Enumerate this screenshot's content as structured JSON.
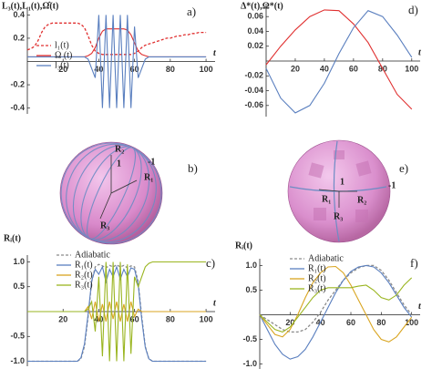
{
  "chart_data": [
    {
      "type": "line",
      "y_label": "L₃(t),L₁(t),Ω̂(t)",
      "panel_label": "a)",
      "x_label": "t",
      "xlim": [
        0,
        102
      ],
      "ylim": [
        -0.45,
        0.45
      ],
      "xticks": [
        20,
        40,
        60,
        80,
        100
      ],
      "yticks": [
        -0.4,
        -0.2,
        0.2,
        0.4
      ],
      "x": [
        0,
        2,
        4,
        6,
        8,
        10,
        12,
        14,
        16,
        18,
        20,
        22,
        24,
        26,
        28,
        30,
        32,
        34,
        36,
        38,
        40,
        42,
        44,
        46,
        48,
        50,
        52,
        54,
        56,
        58,
        60,
        62,
        64,
        66,
        68,
        70,
        72,
        74,
        76,
        78,
        80,
        82,
        84,
        86,
        88,
        90,
        92,
        94,
        96,
        98,
        100
      ],
      "series": [
        {
          "name": "l₁(t)",
          "color": "#e03030",
          "dash": true,
          "values": [
            0.1,
            0.11,
            0.13,
            0.18,
            0.25,
            0.3,
            0.32,
            0.33,
            0.33,
            0.33,
            0.33,
            0.33,
            0.33,
            0.33,
            0.33,
            0.32,
            0.29,
            0.22,
            0.14,
            0.09,
            0.07,
            0.06,
            0.06,
            0.06,
            0.06,
            0.06,
            0.06,
            0.06,
            0.06,
            0.06,
            0.07,
            0.09,
            0.12,
            0.14,
            0.15,
            0.16,
            0.17,
            0.18,
            0.19,
            0.2,
            0.2,
            0.21,
            0.22,
            0.22,
            0.23,
            0.23,
            0.24,
            0.24,
            0.25,
            0.25,
            0.25
          ]
        },
        {
          "name": "Ω (t)",
          "color": "#e03030",
          "dash": false,
          "values": [
            0.04,
            0.04,
            0.04,
            0.04,
            0.04,
            0.04,
            0.04,
            0.04,
            0.04,
            0.04,
            0.04,
            0.04,
            0.04,
            0.04,
            0.04,
            0.04,
            0.04,
            0.05,
            0.07,
            0.12,
            0.2,
            0.26,
            0.28,
            0.28,
            0.28,
            0.28,
            0.28,
            0.28,
            0.27,
            0.23,
            0.16,
            0.09,
            0.06,
            0.05,
            0.04,
            0.04,
            0.04,
            0.04,
            0.04,
            0.04,
            0.04,
            0.04,
            0.04,
            0.04,
            0.04,
            0.04,
            0.04,
            0.04,
            0.04,
            0.04,
            0.04
          ]
        },
        {
          "name": "l₃(t)",
          "color": "#5a7fbf",
          "dash": false,
          "values": [
            0.04,
            0.04,
            0.04,
            0.04,
            0.04,
            0.04,
            0.04,
            0.04,
            0.04,
            0.04,
            0.04,
            0.04,
            0.04,
            0.04,
            0.04,
            0.04,
            0.04,
            0.02,
            -0.06,
            -0.14,
            0.4,
            -0.4,
            0.4,
            -0.4,
            0.4,
            -0.4,
            0.4,
            -0.4,
            0.4,
            -0.4,
            0.3,
            -0.14,
            -0.06,
            0.02,
            0.04,
            0.04,
            0.04,
            0.04,
            0.04,
            0.04,
            0.04,
            0.04,
            0.04,
            0.04,
            0.04,
            0.04,
            0.04,
            0.04,
            0.04,
            0.04,
            0.04
          ]
        }
      ]
    },
    {
      "type": "line",
      "y_label": "Δ*(t),Ω*(t)",
      "panel_label": "d)",
      "x_label": "t",
      "xlim": [
        0,
        102
      ],
      "ylim": [
        -0.075,
        0.075
      ],
      "xticks": [
        20,
        40,
        60,
        80,
        100
      ],
      "yticks": [
        -0.06,
        -0.04,
        -0.02,
        0.02,
        0.04,
        0.06
      ],
      "x": [
        0,
        10,
        20,
        30,
        40,
        50,
        60,
        70,
        80,
        90,
        100
      ],
      "series": [
        {
          "color": "#e03030",
          "dash": false,
          "values": [
            -0.005,
            0.02,
            0.042,
            0.06,
            0.069,
            0.068,
            0.05,
            0.025,
            -0.01,
            -0.045,
            -0.065
          ]
        },
        {
          "color": "#5a7fbf",
          "dash": false,
          "values": [
            -0.01,
            -0.05,
            -0.07,
            -0.06,
            -0.03,
            0.01,
            0.045,
            0.068,
            0.06,
            0.035,
            0.005
          ]
        }
      ]
    },
    {
      "type": "line",
      "y_label": "Rᵢ(t)",
      "panel_label": "c)",
      "x_label": "t",
      "xlim": [
        0,
        102
      ],
      "ylim": [
        -1.1,
        1.1
      ],
      "xticks": [
        20,
        40,
        60,
        80,
        100
      ],
      "yticks": [
        {
          "value": -1,
          "label": "-1.0"
        },
        -0.5,
        0.5,
        {
          "value": 1,
          "label": "1.0"
        }
      ],
      "x": [
        0,
        2,
        4,
        6,
        8,
        10,
        12,
        14,
        16,
        18,
        20,
        22,
        24,
        26,
        28,
        30,
        32,
        34,
        36,
        38,
        40,
        42,
        44,
        46,
        48,
        50,
        52,
        54,
        56,
        58,
        60,
        62,
        64,
        66,
        68,
        70,
        72,
        74,
        76,
        78,
        80,
        82,
        84,
        86,
        88,
        90,
        92,
        94,
        96,
        98,
        100
      ],
      "series": [
        {
          "name": "Adiabatic",
          "color": "#8a8a8a",
          "dash": true,
          "values": [
            -1,
            -1,
            -1,
            -1,
            -1,
            -1,
            -1,
            -1,
            -1,
            -1,
            -1,
            -1,
            -1,
            -1,
            -1,
            -0.95,
            -0.7,
            -0.1,
            0.6,
            0.9,
            0.95,
            0.92,
            0.88,
            0.93,
            0.9,
            0.94,
            0.9,
            0.93,
            0.88,
            0.92,
            0.9,
            0.6,
            -0.1,
            -0.7,
            -0.95,
            -1,
            -1,
            -1,
            -1,
            -1,
            -1,
            -1,
            -1,
            -1,
            -1,
            -1,
            -1,
            -1,
            -1,
            -1,
            -1
          ]
        },
        {
          "name": "R₁(t)",
          "color": "#5a7fbf",
          "dash": false,
          "values": [
            -1,
            -1,
            -1,
            -1,
            -1,
            -1,
            -1,
            -1,
            -1,
            -1,
            -1,
            -1,
            -1,
            -1,
            -1,
            -0.93,
            -0.65,
            -0.05,
            0.62,
            0.85,
            0.75,
            0.9,
            0.6,
            0.85,
            0.7,
            0.9,
            0.65,
            0.85,
            0.7,
            0.88,
            0.85,
            0.55,
            -0.15,
            -0.72,
            -0.95,
            -1,
            -1,
            -1,
            -1,
            -1,
            -1,
            -1,
            -1,
            -1,
            -1,
            -1,
            -1,
            -1,
            -1,
            -1,
            -1
          ]
        },
        {
          "name": "R₂(t)",
          "color": "#d9a520",
          "dash": false,
          "values": [
            0,
            0,
            0,
            0,
            0,
            0,
            0,
            0,
            0,
            0,
            0,
            0,
            0,
            0,
            0,
            0,
            0,
            0.1,
            -0.15,
            0.2,
            -0.2,
            0.15,
            -0.2,
            0.2,
            -0.15,
            0.2,
            -0.2,
            0.15,
            -0.2,
            0.2,
            -0.1,
            0.05,
            0,
            0,
            0,
            0,
            0,
            0,
            0,
            0,
            0,
            0,
            0,
            0,
            0,
            0,
            0,
            0,
            0,
            0,
            0
          ]
        },
        {
          "name": "R₃(t)",
          "color": "#9ab520",
          "dash": false,
          "values": [
            0,
            0,
            0,
            0,
            0,
            0,
            0,
            0,
            0,
            0,
            0,
            0,
            0,
            0,
            0,
            0,
            0,
            0.05,
            0.2,
            -0.4,
            0.7,
            -0.9,
            1,
            -1,
            1,
            -1,
            1,
            -1,
            0.95,
            -0.85,
            0.7,
            0.5,
            0.7,
            0.9,
            0.97,
            1,
            1,
            1,
            1,
            1,
            1,
            1,
            1,
            1,
            1,
            1,
            1,
            1,
            1,
            1,
            1
          ]
        }
      ]
    },
    {
      "type": "line",
      "y_label": "Rᵢ(t)",
      "panel_label": "f)",
      "x_label": "t",
      "xlim": [
        0,
        102
      ],
      "ylim": [
        -1.1,
        1.1
      ],
      "xticks": [
        20,
        40,
        60,
        80,
        100
      ],
      "yticks": [
        {
          "value": -1,
          "label": "-1.0"
        },
        -0.5,
        0.5,
        {
          "value": 1,
          "label": "1.0"
        }
      ],
      "x": [
        0,
        5,
        10,
        15,
        20,
        25,
        30,
        35,
        40,
        45,
        50,
        55,
        60,
        65,
        70,
        75,
        80,
        85,
        90,
        95,
        100
      ],
      "series": [
        {
          "name": "Adiabatic",
          "color": "#8a8a8a",
          "dash": true,
          "values": [
            0,
            -0.1,
            -0.2,
            -0.3,
            -0.35,
            -0.35,
            -0.3,
            -0.15,
            0.05,
            0.3,
            0.5,
            0.7,
            0.85,
            0.95,
            1,
            1,
            0.9,
            0.7,
            0.45,
            0.2,
            0
          ]
        },
        {
          "name": "R₁(t)",
          "color": "#5a7fbf",
          "dash": false,
          "values": [
            0,
            -0.3,
            -0.6,
            -0.8,
            -0.9,
            -0.85,
            -0.7,
            -0.45,
            -0.15,
            0.15,
            0.45,
            0.7,
            0.88,
            0.97,
            1,
            0.97,
            0.85,
            0.65,
            0.4,
            0.15,
            -0.05
          ]
        },
        {
          "name": "R₂(t)",
          "color": "#d9a520",
          "dash": false,
          "values": [
            0,
            -0.2,
            -0.4,
            -0.45,
            -0.3,
            0,
            0.35,
            0.65,
            0.85,
            0.97,
            0.98,
            0.85,
            0.6,
            0.3,
            0,
            -0.3,
            -0.5,
            -0.55,
            -0.45,
            -0.25,
            -0.05
          ]
        },
        {
          "name": "R₃(t)",
          "color": "#9ab520",
          "dash": false,
          "values": [
            0,
            -0.15,
            -0.3,
            -0.35,
            -0.25,
            -0.05,
            0.15,
            0.35,
            0.5,
            0.55,
            0.55,
            0.55,
            0.55,
            0.58,
            0.6,
            0.5,
            0.35,
            0.3,
            0.4,
            0.6,
            0.75
          ]
        }
      ]
    }
  ],
  "sphere_panels": [
    {
      "label": "b)",
      "markers": [
        "R₁",
        "R₂",
        "R₃",
        "1",
        "-1"
      ]
    },
    {
      "label": "e)",
      "markers": [
        "R₁",
        "R₂",
        "R₃",
        "1",
        "-1"
      ]
    }
  ]
}
